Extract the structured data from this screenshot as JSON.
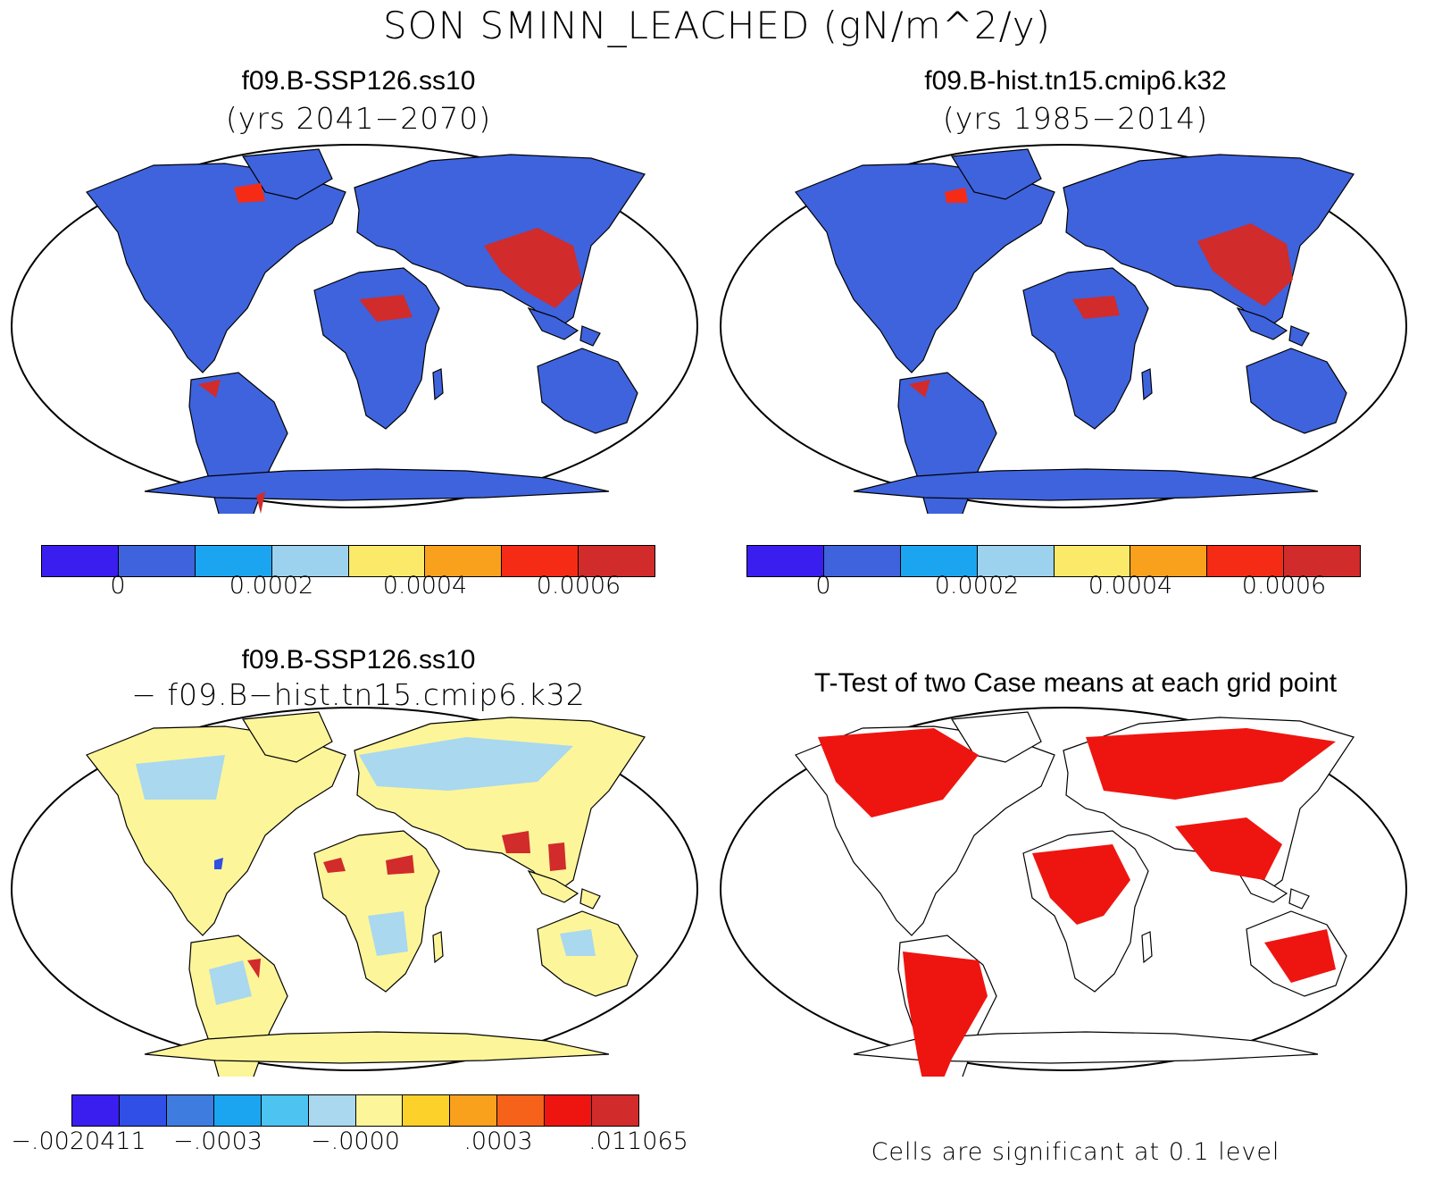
{
  "main_title": "SON SMINN_LEACHED (gN/m^2/y)",
  "panels": [
    {
      "title": "f09.B-SSP126.ss10",
      "subtitle": "(yrs 2041−2070)"
    },
    {
      "title": "f09.B-hist.tn15.cmip6.k32",
      "subtitle": "(yrs 1985−2014)"
    },
    {
      "title": "f09.B-SSP126.ss10",
      "subtitle": "− f09.B−hist.tn15.cmip6.k32"
    },
    {
      "title": "T-Test of two Case means at each grid point",
      "subtitle": ""
    }
  ],
  "colorbars": {
    "abs": {
      "colors": [
        "#3a1ef0",
        "#3e63dd",
        "#1ba5f0",
        "#9dd2ef",
        "#fbe96a",
        "#f9a11d",
        "#f62b16",
        "#d12b2b"
      ],
      "labels": [
        "0",
        "0.0002",
        "0.0004",
        "0.0006"
      ]
    },
    "diff": {
      "colors": [
        "#3a1ef0",
        "#2f4fe6",
        "#3e7ddf",
        "#1ba5f0",
        "#4dc3f2",
        "#a9d8ef",
        "#fdf59a",
        "#fbd12a",
        "#f9a11d",
        "#f6621a",
        "#ee1510",
        "#d12b2b"
      ],
      "labels": [
        "−.0020411",
        "−.0003",
        "−.0000",
        ".0003",
        ".011065"
      ]
    }
  },
  "ttest_note": "Cells are significant at 0.1 level"
}
